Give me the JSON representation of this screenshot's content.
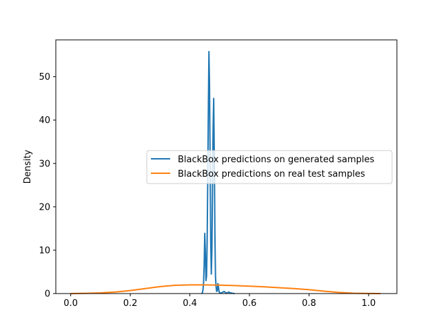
{
  "chart_data": {
    "type": "line",
    "title": "",
    "xlabel": "",
    "ylabel": "Density",
    "xlim": [
      -0.05,
      1.095
    ],
    "ylim": [
      0,
      58.5
    ],
    "xticks": [
      "0.0",
      "0.2",
      "0.4",
      "0.6",
      "0.8",
      "1.0"
    ],
    "yticks": [
      "0",
      "10",
      "20",
      "30",
      "40",
      "50"
    ],
    "grid": false,
    "legend_position": "center-right",
    "series": [
      {
        "name": "BlackBox predictions on generated samples",
        "color": "#1f77b4",
        "x": [
          0.44,
          0.442,
          0.444,
          0.446,
          0.448,
          0.45,
          0.452,
          0.454,
          0.456,
          0.458,
          0.46,
          0.462,
          0.464,
          0.466,
          0.468,
          0.47,
          0.472,
          0.474,
          0.476,
          0.478,
          0.48,
          0.482,
          0.484,
          0.486,
          0.488,
          0.49,
          0.492,
          0.494,
          0.496,
          0.498,
          0.5,
          0.505,
          0.51,
          0.515,
          0.52,
          0.525,
          0.53,
          0.535,
          0.54,
          0.545,
          0.55
        ],
        "values": [
          0,
          0.2,
          0.8,
          2.5,
          6.5,
          13.9,
          9.5,
          3.0,
          4.0,
          12.0,
          26.0,
          42.0,
          55.8,
          48.0,
          30.0,
          12.0,
          4.5,
          10.0,
          25.0,
          38.0,
          45.0,
          32.0,
          14.0,
          4.0,
          1.5,
          0.5,
          0.6,
          2.3,
          1.5,
          0.4,
          0.2,
          0.1,
          0.3,
          0.5,
          0.2,
          0.1,
          0.35,
          0.2,
          0.1,
          0.05,
          0
        ]
      },
      {
        "name": "BlackBox predictions on real test samples",
        "color": "#ff7f0e",
        "x": [
          0.0,
          0.05,
          0.1,
          0.15,
          0.2,
          0.25,
          0.3,
          0.35,
          0.4,
          0.45,
          0.5,
          0.55,
          0.6,
          0.65,
          0.7,
          0.75,
          0.8,
          0.85,
          0.9,
          0.95,
          1.0,
          1.04
        ],
        "values": [
          0.01,
          0.05,
          0.15,
          0.35,
          0.7,
          1.15,
          1.6,
          1.9,
          2.0,
          2.0,
          1.95,
          1.85,
          1.7,
          1.55,
          1.35,
          1.15,
          0.9,
          0.55,
          0.25,
          0.08,
          0.02,
          0.0
        ]
      }
    ]
  }
}
